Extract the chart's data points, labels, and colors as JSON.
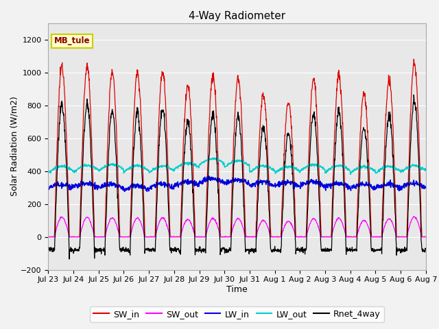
{
  "title": "4-Way Radiometer",
  "xlabel": "Time",
  "ylabel": "Solar Radiation (W/m2)",
  "ylim": [
    -200,
    1300
  ],
  "yticks": [
    -200,
    0,
    200,
    400,
    600,
    800,
    1000,
    1200
  ],
  "x_tick_labels": [
    "Jul 23",
    "Jul 24",
    "Jul 25",
    "Jul 26",
    "Jul 27",
    "Jul 28",
    "Jul 29",
    "Jul 30",
    "Jul 31",
    "Aug 1",
    "Aug 2",
    "Aug 3",
    "Aug 4",
    "Aug 5",
    "Aug 6",
    "Aug 7"
  ],
  "station_label": "MB_tule",
  "colors": {
    "SW_in": "#dd0000",
    "SW_out": "#ff00ff",
    "LW_in": "#0000dd",
    "LW_out": "#00cccc",
    "Rnet_4way": "#000000"
  },
  "plot_bg": "#e8e8e8",
  "fig_bg": "#f2f2f2",
  "grid_color": "#ffffff",
  "title_fontsize": 11,
  "label_fontsize": 9,
  "tick_fontsize": 8,
  "legend_fontsize": 9
}
